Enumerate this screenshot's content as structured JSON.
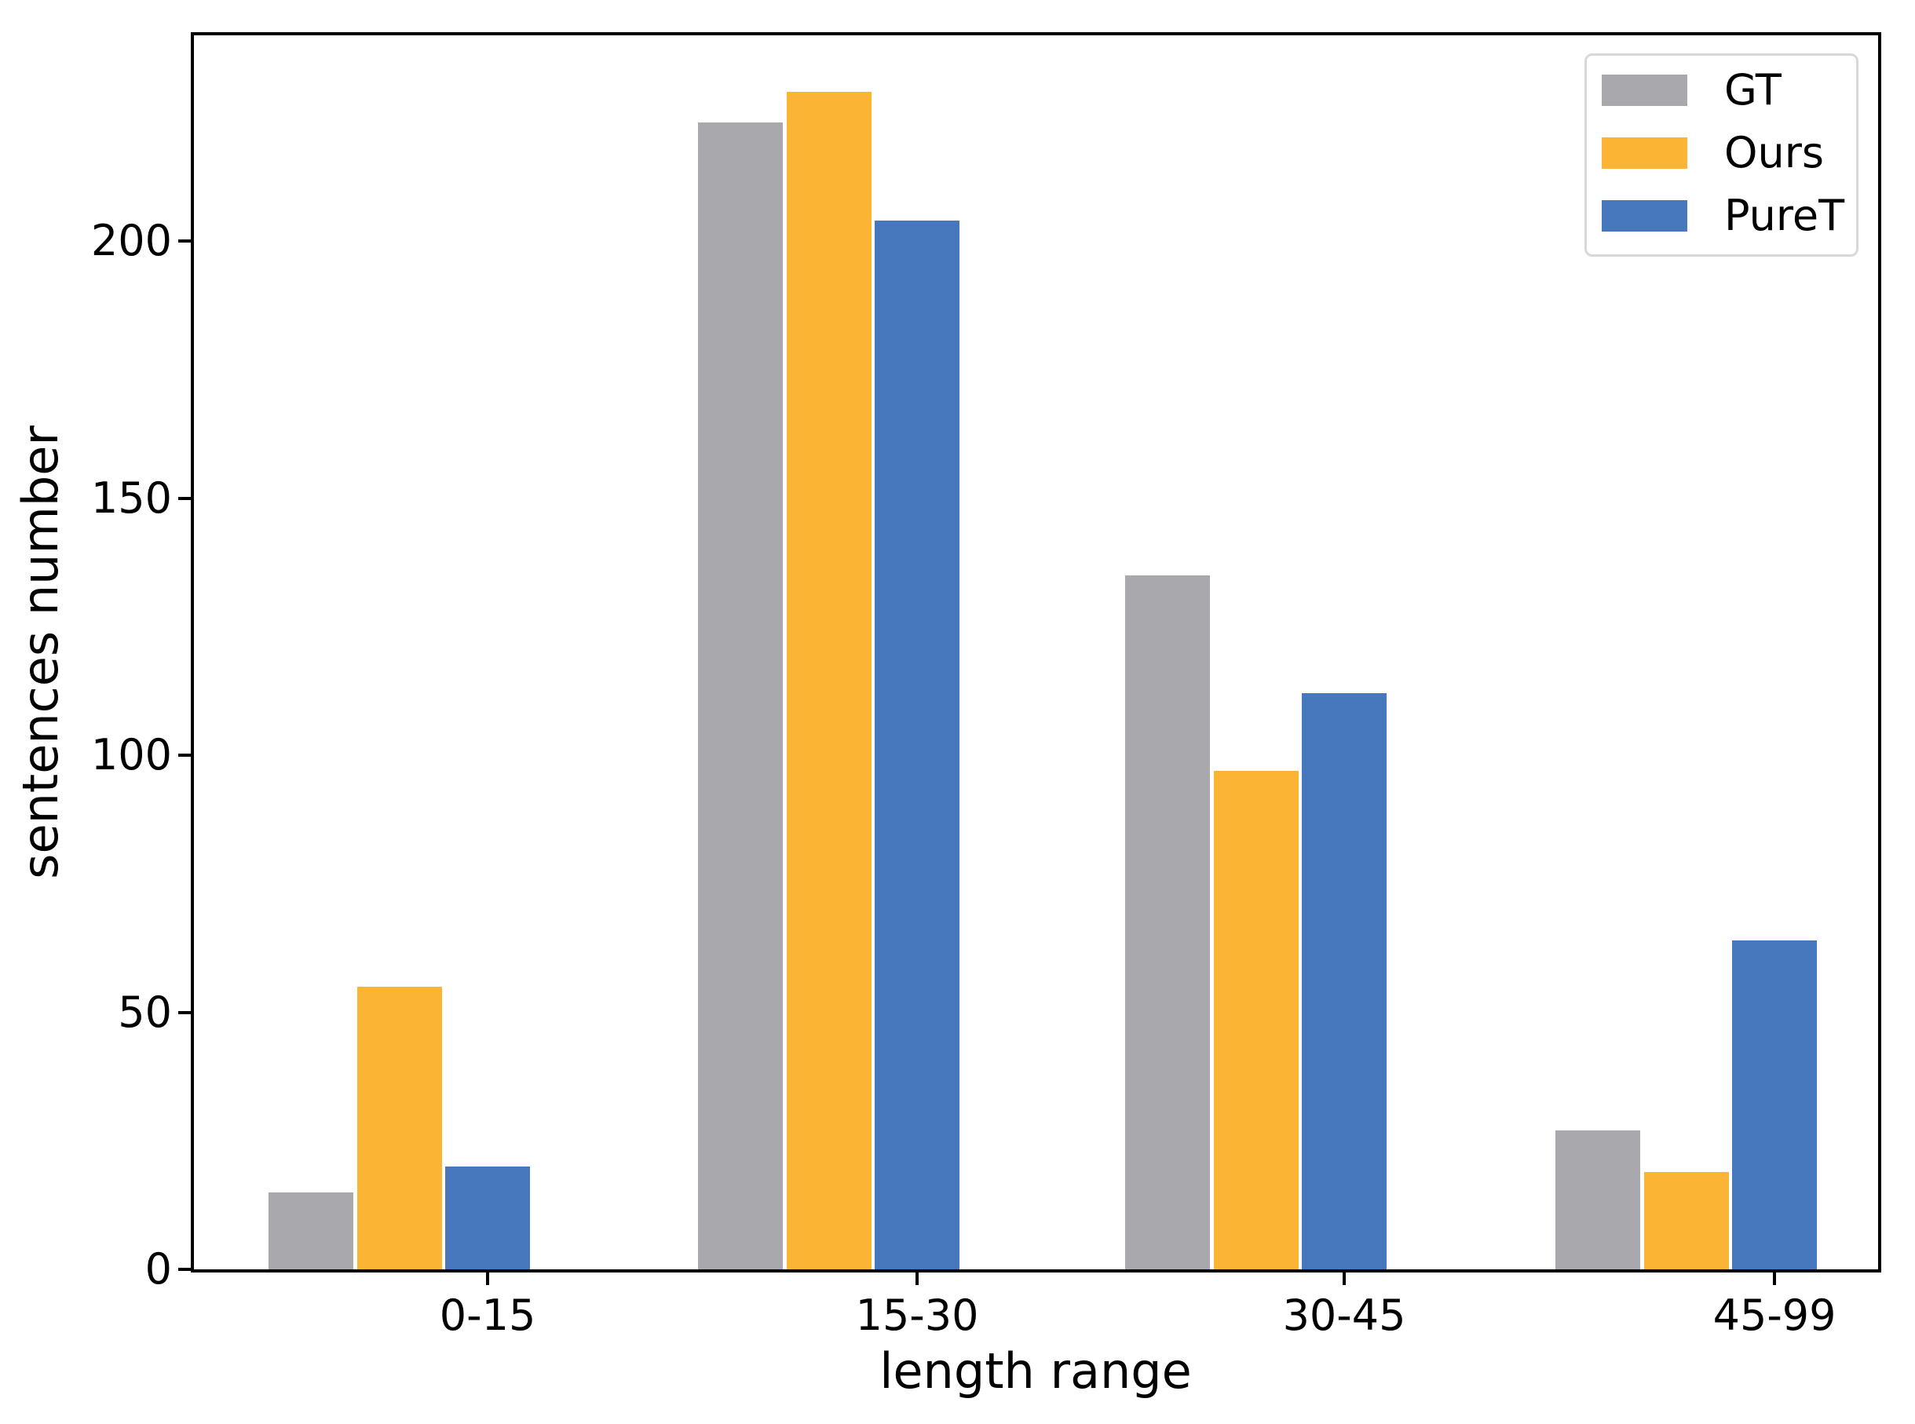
{
  "chart_data": {
    "type": "bar",
    "title": "",
    "xlabel": "length range",
    "ylabel": "sentences number",
    "categories": [
      "0-15",
      "15-30",
      "30-45",
      "45-99"
    ],
    "series": [
      {
        "name": "GT",
        "color": "#a9a9ad",
        "values": [
          15,
          223,
          135,
          27
        ]
      },
      {
        "name": "Ours",
        "color": "#fcb434",
        "values": [
          55,
          229,
          97,
          19
        ]
      },
      {
        "name": "PureT",
        "color": "#4777bd",
        "values": [
          20,
          204,
          112,
          64
        ]
      }
    ],
    "ylim": [
      0,
      240
    ],
    "yticks": [
      0,
      50,
      100,
      150,
      200
    ],
    "ytick_labels": [
      "0",
      "50",
      "100",
      "150",
      "200"
    ],
    "legend": {
      "position": "upper right",
      "entries": [
        "GT",
        "Ours",
        "PureT"
      ]
    },
    "grid": false,
    "axis_color": "#000000",
    "background_color": "#ffffff"
  }
}
